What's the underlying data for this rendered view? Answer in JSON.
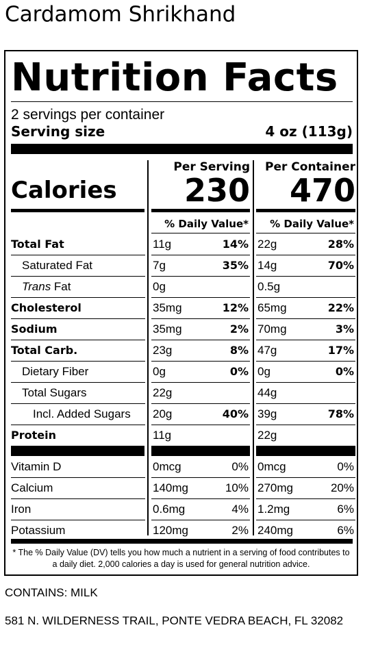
{
  "product_name": "Cardamom Shrikhand",
  "heading": "Nutrition Facts",
  "servings_per_container": "2 servings per container",
  "serving_size_label": "Serving size",
  "serving_size_value": "4 oz (113g)",
  "per_serving_label": "Per Serving",
  "per_container_label": "Per Container",
  "calories_label": "Calories",
  "calories_per_serving": "230",
  "calories_per_container": "470",
  "dv_header": "% Daily Value*",
  "nutrients": [
    {
      "name": "Total Fat",
      "serving_amount": "11g",
      "serving_dv": "14%",
      "container_amount": "22g",
      "container_dv": "28%"
    },
    {
      "name": "Saturated Fat",
      "serving_amount": "7g",
      "serving_dv": "35%",
      "container_amount": "14g",
      "container_dv": "70%"
    },
    {
      "name_italic": "Trans",
      "name_rest": " Fat",
      "serving_amount": "0g",
      "serving_dv": "",
      "container_amount": "0.5g",
      "container_dv": ""
    },
    {
      "name": "Cholesterol",
      "serving_amount": "35mg",
      "serving_dv": "12%",
      "container_amount": "65mg",
      "container_dv": "22%"
    },
    {
      "name": "Sodium",
      "serving_amount": "35mg",
      "serving_dv": "2%",
      "container_amount": "70mg",
      "container_dv": "3%"
    },
    {
      "name": "Total Carb.",
      "serving_amount": "23g",
      "serving_dv": "8%",
      "container_amount": "47g",
      "container_dv": "17%"
    },
    {
      "name": "Dietary Fiber",
      "serving_amount": "0g",
      "serving_dv": "0%",
      "container_amount": "0g",
      "container_dv": "0%"
    },
    {
      "name": "Total Sugars",
      "serving_amount": "22g",
      "serving_dv": "",
      "container_amount": "44g",
      "container_dv": ""
    },
    {
      "name": "Incl. Added Sugars",
      "serving_amount": "20g",
      "serving_dv": "40%",
      "container_amount": "39g",
      "container_dv": "78%"
    },
    {
      "name": "Protein",
      "serving_amount": "11g",
      "serving_dv": "",
      "container_amount": "22g",
      "container_dv": ""
    }
  ],
  "vitamins": [
    {
      "name": "Vitamin D",
      "serving_amount": "0mcg",
      "serving_dv": "0%",
      "container_amount": "0mcg",
      "container_dv": "0%"
    },
    {
      "name": "Calcium",
      "serving_amount": "140mg",
      "serving_dv": "10%",
      "container_amount": "270mg",
      "container_dv": "20%"
    },
    {
      "name": "Iron",
      "serving_amount": "0.6mg",
      "serving_dv": "4%",
      "container_amount": "1.2mg",
      "container_dv": "6%"
    },
    {
      "name": "Potassium",
      "serving_amount": "120mg",
      "serving_dv": "2%",
      "container_amount": "240mg",
      "container_dv": "6%"
    }
  ],
  "footnote": "* The % Daily Value (DV) tells you how much a nutrient in a serving of food contributes to a daily diet. 2,000 calories a day is used for general nutrition advice.",
  "contains": "CONTAINS: MILK",
  "address": "581 N. WILDERNESS TRAIL, PONTE VEDRA BEACH, FL 32082"
}
